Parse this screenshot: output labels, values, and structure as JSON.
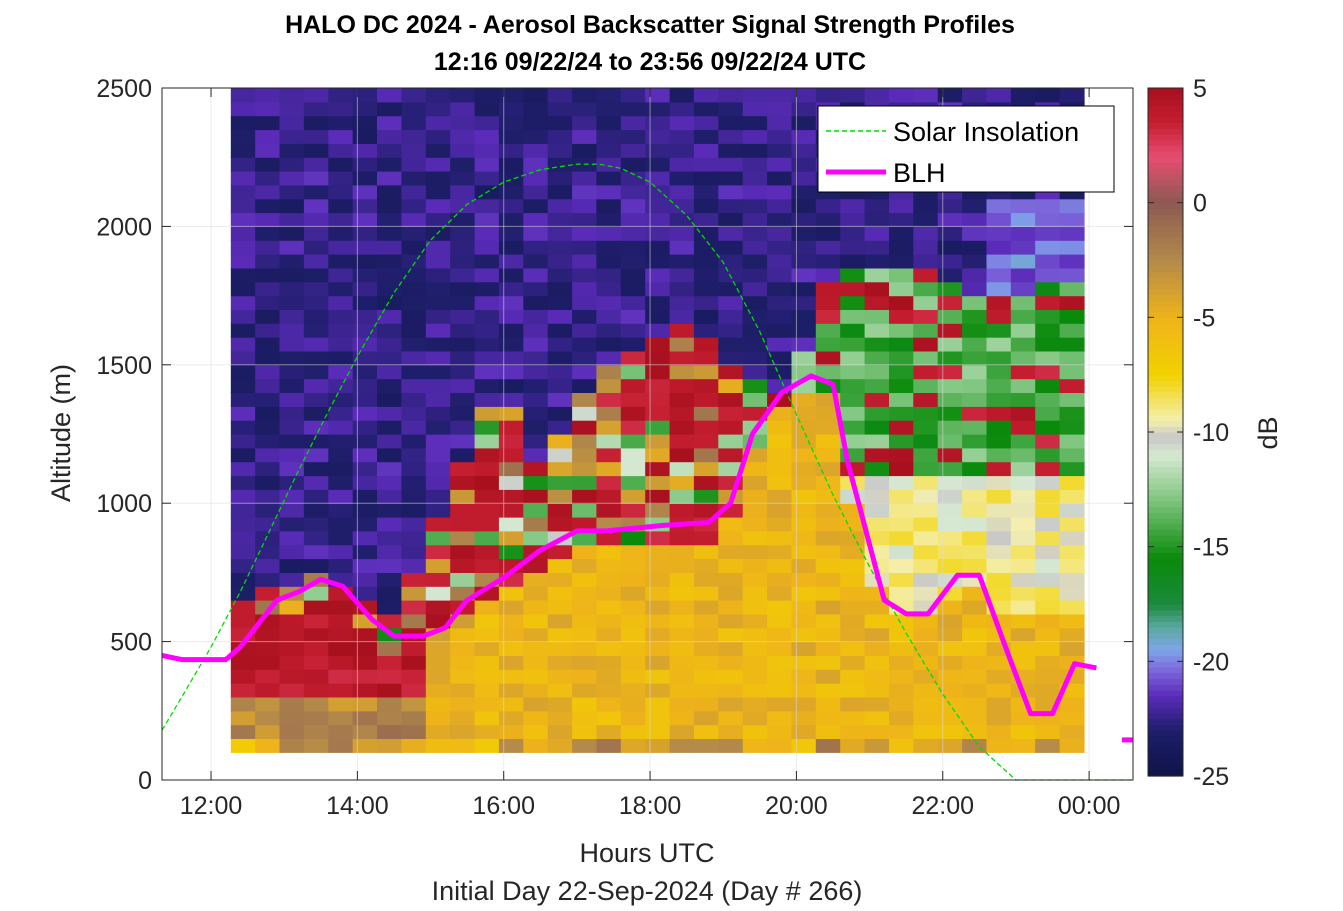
{
  "chart_data": {
    "type": "heatmap",
    "title": "HALO DC 2024 - Aerosol Backscatter Signal Strength Profiles",
    "subtitle": "12:16 09/22/24 to 23:56 09/22/24  UTC",
    "xlabel": "Hours UTC",
    "xlabel2": "Initial Day 22-Sep-2024 (Day # 266)",
    "ylabel": "Altitude (m)",
    "colorbar_label": "dB",
    "xlim": [
      11.33,
      24.6
    ],
    "ylim": [
      0,
      2500
    ],
    "x_ticks": [
      {
        "v": 12,
        "label": "12:00"
      },
      {
        "v": 14,
        "label": "14:00"
      },
      {
        "v": 16,
        "label": "16:00"
      },
      {
        "v": 18,
        "label": "18:00"
      },
      {
        "v": 20,
        "label": "20:00"
      },
      {
        "v": 22,
        "label": "22:00"
      },
      {
        "v": 24,
        "label": "00:00"
      }
    ],
    "y_ticks": [
      {
        "v": 0,
        "label": "0"
      },
      {
        "v": 500,
        "label": "500"
      },
      {
        "v": 1000,
        "label": "1000"
      },
      {
        "v": 1500,
        "label": "1500"
      },
      {
        "v": 2000,
        "label": "2000"
      },
      {
        "v": 2500,
        "label": "2500"
      }
    ],
    "clim": [
      -25,
      5
    ],
    "colorbar_ticks": [
      {
        "v": 5,
        "label": "5"
      },
      {
        "v": 0,
        "label": "0"
      },
      {
        "v": -5,
        "label": "-5"
      },
      {
        "v": -10,
        "label": "-10"
      },
      {
        "v": -15,
        "label": "-15"
      },
      {
        "v": -20,
        "label": "-20"
      },
      {
        "v": -25,
        "label": "-25"
      }
    ],
    "grid": true,
    "legend_position": "top-right",
    "heatmap": {
      "x_start": 12.27,
      "x_end": 23.93,
      "n_cols": 35,
      "alt_bottom": 100,
      "alt_top": 2500,
      "n_rows": 48,
      "data_coverage": "no signal to the left of 12:16 or to the right of 23:56",
      "value_description": "Backscatter signal strength in dB; bottom layer strongest, free troposphere near -23 dB"
    },
    "series": [
      {
        "name": "Solar Insolation",
        "style": "dashed",
        "color": "#00dd00",
        "x": [
          11.33,
          11.6,
          12.0,
          12.4,
          12.8,
          13.2,
          13.6,
          14.0,
          14.5,
          15.0,
          15.5,
          16.0,
          16.5,
          17.0,
          17.3,
          17.6,
          18.0,
          18.5,
          19.0,
          19.5,
          20.0,
          20.5,
          21.0,
          21.5,
          22.0,
          22.5,
          23.0,
          23.3,
          24.6
        ],
        "values": [
          180,
          300,
          480,
          680,
          900,
          1120,
          1330,
          1530,
          1760,
          1950,
          2080,
          2160,
          2205,
          2225,
          2225,
          2210,
          2160,
          2040,
          1870,
          1620,
          1320,
          1030,
          770,
          530,
          310,
          120,
          0,
          0,
          0
        ]
      },
      {
        "name": "BLH",
        "style": "solid",
        "color": "#ff00ff",
        "x": [
          11.33,
          11.6,
          12.2,
          12.4,
          12.9,
          13.2,
          13.5,
          13.8,
          14.2,
          14.5,
          14.9,
          15.2,
          15.5,
          16.0,
          16.5,
          17.0,
          17.4,
          17.8,
          18.2,
          18.5,
          18.8,
          19.1,
          19.4,
          19.8,
          20.2,
          20.5,
          20.7,
          20.9,
          21.2,
          21.5,
          21.8,
          22.2,
          22.5,
          22.9,
          23.2,
          23.5,
          23.8,
          24.1
        ],
        "values": [
          450,
          435,
          435,
          480,
          650,
          680,
          725,
          700,
          580,
          520,
          520,
          550,
          650,
          730,
          830,
          900,
          900,
          910,
          920,
          925,
          930,
          1000,
          1250,
          1400,
          1460,
          1430,
          1150,
          950,
          650,
          600,
          600,
          740,
          740,
          450,
          240,
          240,
          420,
          405
        ],
        "extra_segment": {
          "x": [
            24.45,
            24.6
          ],
          "values": [
            145,
            145
          ]
        }
      }
    ]
  }
}
